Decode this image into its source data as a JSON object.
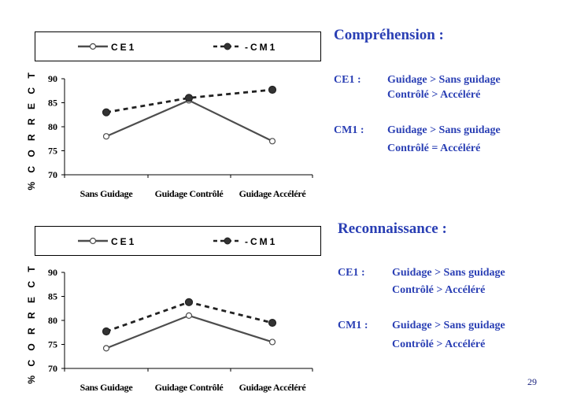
{
  "chart_data": [
    {
      "type": "line",
      "categories": [
        "Sans Guidage",
        "Guidage Contrôlé",
        "Guidage Accéléré"
      ],
      "series": [
        {
          "name": "CE1",
          "values": [
            78,
            85.5,
            77
          ],
          "color": "#4d4d4d",
          "marker": "open-circle",
          "linestyle": "solid"
        },
        {
          "name": "CM1",
          "values": [
            83,
            86,
            87.7
          ],
          "color": "#222222",
          "marker": "filled-circle",
          "linestyle": "dashed"
        }
      ],
      "ylabel": "% C O R R E C T",
      "ylim": [
        70,
        90
      ],
      "yticks": [
        70,
        75,
        80,
        85,
        90
      ],
      "legend": "top"
    },
    {
      "type": "line",
      "categories": [
        "Sans Guidage",
        "Guidage Contrôlé",
        "Guidage Accéléré"
      ],
      "series": [
        {
          "name": "CE1",
          "values": [
            74.2,
            81,
            75.5
          ],
          "color": "#4d4d4d",
          "marker": "open-circle",
          "linestyle": "solid"
        },
        {
          "name": "CM1",
          "values": [
            77.7,
            83.8,
            79.5
          ],
          "color": "#222222",
          "marker": "filled-circle",
          "linestyle": "dashed"
        }
      ],
      "ylabel": "% C O R R E C T",
      "ylim": [
        70,
        90
      ],
      "yticks": [
        70,
        75,
        80,
        85,
        90
      ],
      "legend": "top"
    }
  ],
  "legend_labels": {
    "ce1": "CE1",
    "cm1": "CM1"
  },
  "right_panel": {
    "comprehension": {
      "title": "Compréhension :",
      "ce1_label": "CE1 :",
      "ce1_line1": "Guidage > Sans guidage",
      "ce1_line2": "Contrôlé > Accéléré",
      "cm1_label": "CM1 :",
      "cm1_line1": "Guidage > Sans guidage",
      "cm1_line2": "Contrôlé = Accéléré"
    },
    "reconnaissance": {
      "title": "Reconnaissance :",
      "ce1_label": "CE1 :",
      "ce1_line1": "Guidage > Sans guidage",
      "ce1_line2": "Contrôlé > Accéléré",
      "cm1_label": "CM1 :",
      "cm1_line1": "Guidage > Sans guidage",
      "cm1_line2": "Contrôlé > Accéléré"
    },
    "text_color": "#2a3fb4"
  },
  "page_number": "29"
}
